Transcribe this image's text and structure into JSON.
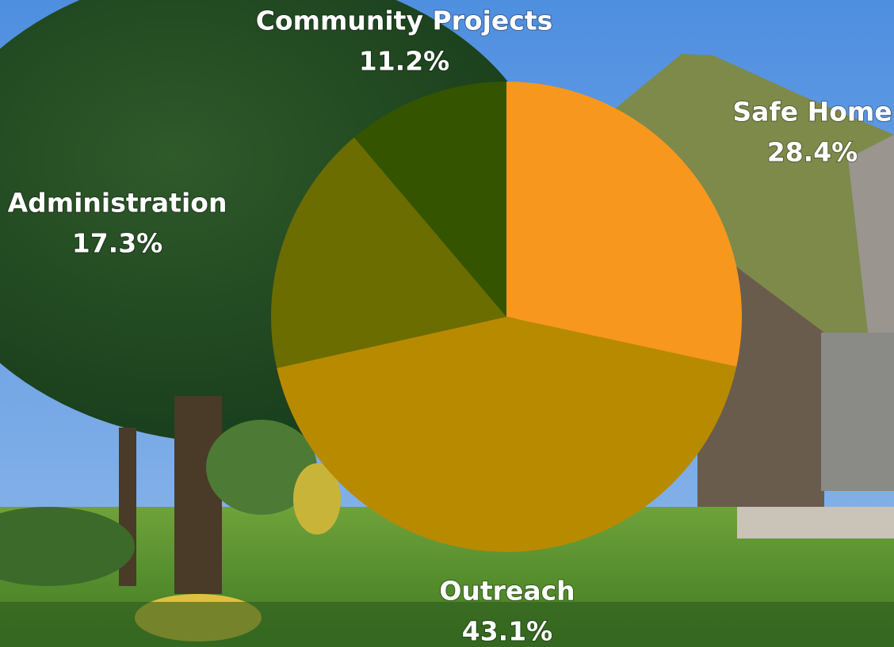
{
  "chart_data": {
    "type": "pie",
    "categories": [
      "Safe Home",
      "Outreach",
      "Administration",
      "Community Projects"
    ],
    "values": [
      28.4,
      43.1,
      17.3,
      11.2
    ],
    "value_labels": [
      "28.4%",
      "43.1%",
      "17.3%",
      "11.2%"
    ],
    "colors": [
      "#f7971e",
      "#b88a00",
      "#6b6d00",
      "#355400"
    ]
  }
}
